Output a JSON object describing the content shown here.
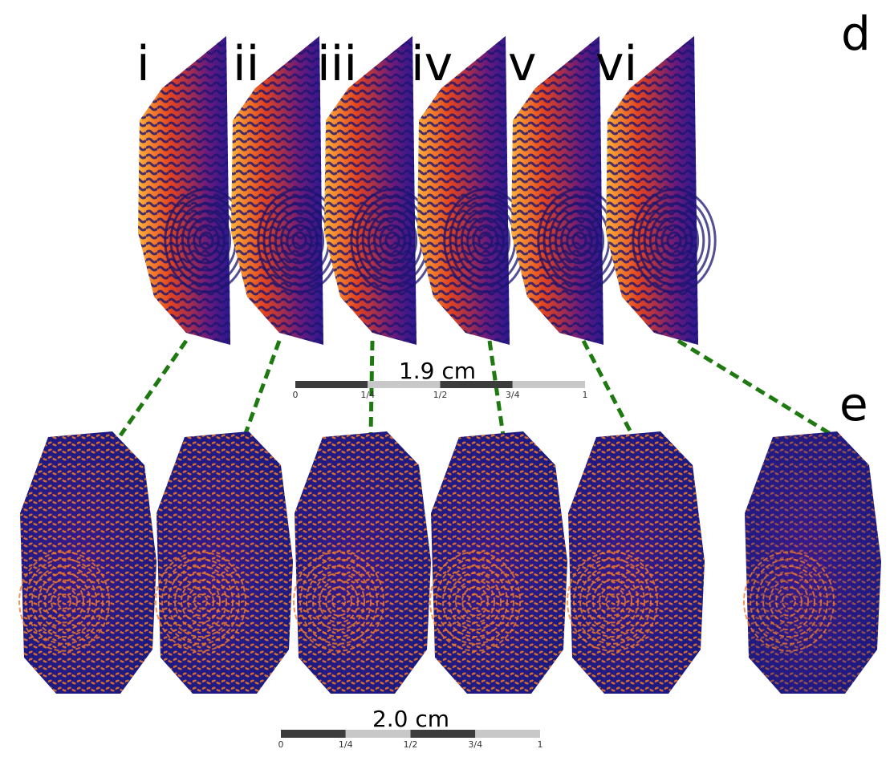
{
  "panels": [
    {
      "label": "d",
      "items": [
        "i",
        "ii",
        "iii",
        "iv",
        "v",
        "vi"
      ],
      "scale_bar": {
        "length": "1.9 cm",
        "ticks": [
          "0",
          "1/4",
          "1/2",
          "3/4",
          "1"
        ]
      }
    },
    {
      "label": "e",
      "scale_bar": {
        "length": "2.0 cm",
        "ticks": [
          "0",
          "1/4",
          "1/2",
          "3/4",
          "1"
        ]
      }
    }
  ]
}
